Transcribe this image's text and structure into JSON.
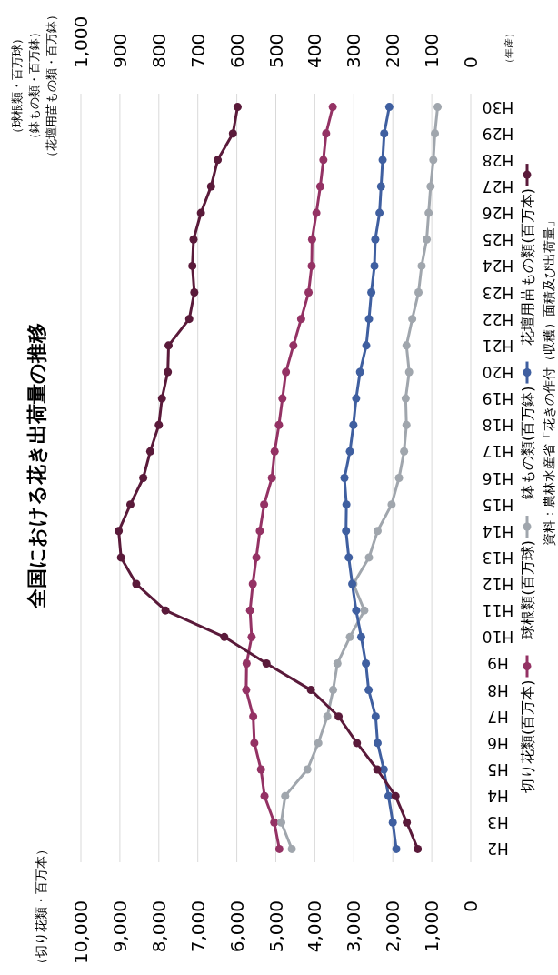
{
  "chart_data": {
    "type": "line",
    "orientation": "horizontal",
    "title": "全国における花き出荷量の推移",
    "ylabel": "（年産）",
    "x2label": "（球根類・百万球）（鉢もの類・百万鉢）（花壇用苗もの類・百万鉢）",
    "categories": [
      "H30",
      "H29",
      "H28",
      "H27",
      "H26",
      "H25",
      "H24",
      "H23",
      "H22",
      "H21",
      "H20",
      "H19",
      "H18",
      "H17",
      "H16",
      "H15",
      "H14",
      "H13",
      "H12",
      "H11",
      "H10",
      "H9",
      "H8",
      "H7",
      "H6",
      "H5",
      "H4",
      "H3",
      "H2"
    ],
    "series": [
      {
        "name": "切り花類(百万本)",
        "color": "#943264",
        "values": [
          3540,
          3710,
          3780,
          3860,
          3960,
          4070,
          4080,
          4160,
          4350,
          4550,
          4740,
          4830,
          4920,
          5030,
          5100,
          5300,
          5410,
          5500,
          5590,
          5660,
          5620,
          5750,
          5760,
          5580,
          5550,
          5380,
          5290,
          5040,
          4910
        ]
      },
      {
        "name": "球根類(百万球)",
        "color": "#a0a6ad",
        "axis": "x2",
        "values": [
          85,
          92,
          96,
          103,
          108,
          113,
          126,
          134,
          150,
          165,
          158,
          167,
          165,
          171,
          184,
          203,
          239,
          261,
          301,
          273,
          310,
          342,
          353,
          368,
          391,
          419,
          476,
          486,
          459
        ]
      },
      {
        "name": "鉢もの類(百万鉢)",
        "color": "#3f5fa0",
        "axis": "x2",
        "values": [
          209,
          222,
          226,
          230,
          234,
          245,
          247,
          255,
          261,
          268,
          284,
          294,
          301,
          310,
          324,
          319,
          320,
          313,
          304,
          294,
          281,
          269,
          262,
          244,
          239,
          223,
          211,
          200,
          191
        ]
      },
      {
        "name": "花壇用苗もの類(百万本)",
        "color": "#5a1a3a",
        "axis": "x2",
        "values": [
          598,
          610,
          649,
          666,
          692,
          711,
          714,
          709,
          722,
          775,
          777,
          792,
          800,
          822,
          840,
          873,
          903,
          897,
          858,
          783,
          632,
          524,
          410,
          339,
          292,
          240,
          193,
          164,
          136
        ]
      }
    ],
    "xlim": [
      10000,
      0
    ],
    "xticks": [
      0,
      {
        "value": 1000,
        "label": "1,000"
      },
      {
        "value": 2000,
        "label": "2,000"
      },
      {
        "value": 3000,
        "label": "3,000"
      },
      {
        "value": 4000,
        "label": "4,000"
      },
      {
        "value": 5000,
        "label": "5,000"
      },
      {
        "value": 6000,
        "label": "6,000"
      },
      {
        "value": 7000,
        "label": "7,000"
      },
      {
        "value": 8000,
        "label": "8,000"
      },
      {
        "value": 9000,
        "label": "9,000"
      },
      {
        "value": 10000,
        "label": "10,000"
      }
    ],
    "x2lim": [
      1000,
      0
    ],
    "x2ticks": [
      0,
      100,
      200,
      300,
      400,
      500,
      600,
      700,
      800,
      900,
      {
        "value": 1000,
        "label": "1,000"
      }
    ],
    "grid": "x",
    "legend": "right",
    "marker": "circle",
    "annotations": [
      "資料：農林水産省「花きの作付（収穫）面積及び出荷量」",
      "（切り花類・百万本）"
    ]
  }
}
